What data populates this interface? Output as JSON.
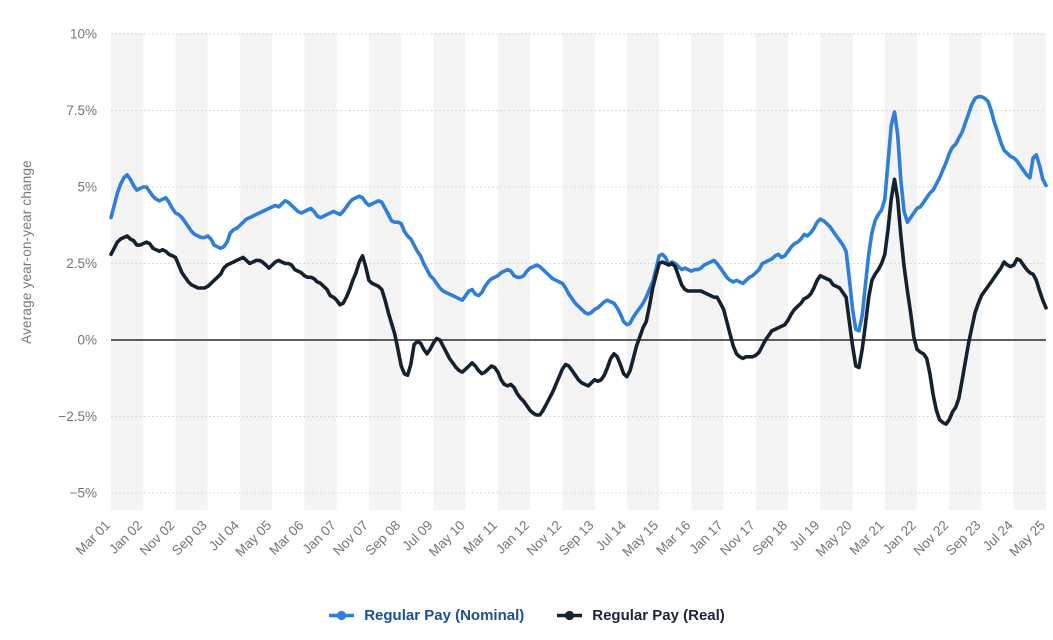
{
  "chart_data": {
    "type": "line",
    "title": "",
    "y_axis": {
      "title": "Average year-on-year change",
      "tick_labels": [
        "10%",
        "7.5%",
        "5%",
        "2.5%",
        "0%",
        "−2.5%",
        "−5%"
      ],
      "tick_values": [
        10,
        7.5,
        5,
        2.5,
        0,
        -2.5,
        -5
      ],
      "range": [
        -5.5,
        10
      ]
    },
    "x_axis": {
      "tick_labels": [
        "Mar 01",
        "Jan 02",
        "Nov 02",
        "Sep 03",
        "Jul 04",
        "May 05",
        "Mar 06",
        "Jan 07",
        "Nov 07",
        "Sep 08",
        "Jul 09",
        "May 10",
        "Mar 11",
        "Jan 12",
        "Nov 12",
        "Sep 13",
        "Jul 14",
        "May 15",
        "Mar 16",
        "Jan 17",
        "Nov 17",
        "Sep 18",
        "Jul 19",
        "May 20",
        "Mar 21",
        "Jan 22",
        "Nov 22",
        "Sep 23",
        "Jul 24",
        "May 25"
      ],
      "months_per_tick": 10,
      "start": "Mar 2001",
      "end": "May 2025"
    },
    "grid": "dotted horizontal",
    "zero_line": true,
    "background_bands": "alternating vertical stripes",
    "legend_position": "bottom",
    "colors": {
      "band": "#f4f4f5",
      "grid": "#d0d0d0",
      "zero_line": "#2b2b2b",
      "tick_text": "#757575"
    },
    "series": [
      {
        "id": "nominal",
        "name": "Regular Pay (Nominal)",
        "color": "#2f7ed8",
        "label_color": "#1d4f91",
        "values": [
          4.0,
          4.4,
          4.8,
          5.1,
          5.3,
          5.4,
          5.25,
          5.05,
          4.9,
          4.95,
          5.0,
          5.0,
          4.85,
          4.7,
          4.6,
          4.55,
          4.6,
          4.65,
          4.5,
          4.3,
          4.15,
          4.1,
          4.0,
          3.85,
          3.7,
          3.55,
          3.45,
          3.4,
          3.35,
          3.35,
          3.4,
          3.3,
          3.1,
          3.05,
          3.0,
          3.05,
          3.2,
          3.5,
          3.6,
          3.65,
          3.75,
          3.85,
          3.95,
          4.0,
          4.05,
          4.1,
          4.15,
          4.2,
          4.25,
          4.3,
          4.35,
          4.4,
          4.35,
          4.45,
          4.55,
          4.5,
          4.4,
          4.3,
          4.2,
          4.15,
          4.2,
          4.25,
          4.3,
          4.2,
          4.05,
          4.0,
          4.05,
          4.1,
          4.15,
          4.2,
          4.15,
          4.1,
          4.2,
          4.35,
          4.5,
          4.6,
          4.65,
          4.7,
          4.65,
          4.5,
          4.4,
          4.45,
          4.5,
          4.55,
          4.5,
          4.3,
          4.1,
          3.9,
          3.85,
          3.85,
          3.8,
          3.55,
          3.4,
          3.3,
          3.1,
          2.9,
          2.75,
          2.5,
          2.3,
          2.1,
          2.0,
          1.85,
          1.7,
          1.6,
          1.55,
          1.5,
          1.45,
          1.4,
          1.35,
          1.3,
          1.45,
          1.6,
          1.65,
          1.5,
          1.45,
          1.55,
          1.75,
          1.9,
          2.0,
          2.05,
          2.1,
          2.2,
          2.25,
          2.3,
          2.25,
          2.1,
          2.05,
          2.05,
          2.1,
          2.25,
          2.35,
          2.4,
          2.45,
          2.4,
          2.3,
          2.2,
          2.1,
          2.0,
          1.95,
          1.9,
          1.85,
          1.7,
          1.5,
          1.35,
          1.2,
          1.1,
          1.0,
          0.9,
          0.85,
          0.9,
          1.0,
          1.05,
          1.15,
          1.25,
          1.3,
          1.25,
          1.2,
          1.05,
          0.85,
          0.6,
          0.5,
          0.55,
          0.75,
          0.9,
          1.05,
          1.2,
          1.4,
          1.65,
          1.9,
          2.3,
          2.75,
          2.8,
          2.7,
          2.45,
          2.55,
          2.5,
          2.4,
          2.3,
          2.35,
          2.3,
          2.25,
          2.3,
          2.3,
          2.35,
          2.45,
          2.5,
          2.55,
          2.6,
          2.5,
          2.35,
          2.2,
          2.05,
          1.95,
          1.9,
          1.95,
          1.9,
          1.85,
          1.95,
          2.05,
          2.1,
          2.2,
          2.3,
          2.5,
          2.55,
          2.6,
          2.65,
          2.75,
          2.8,
          2.7,
          2.75,
          2.9,
          3.05,
          3.15,
          3.2,
          3.3,
          3.45,
          3.4,
          3.5,
          3.65,
          3.85,
          3.95,
          3.9,
          3.8,
          3.7,
          3.55,
          3.4,
          3.25,
          3.1,
          2.9,
          2.0,
          1.0,
          0.35,
          0.3,
          0.8,
          1.8,
          2.8,
          3.5,
          3.9,
          4.1,
          4.25,
          4.6,
          5.8,
          7.0,
          7.45,
          6.7,
          5.2,
          4.2,
          3.85,
          4.0,
          4.15,
          4.3,
          4.35,
          4.5,
          4.65,
          4.8,
          4.9,
          5.1,
          5.3,
          5.55,
          5.8,
          6.1,
          6.3,
          6.4,
          6.6,
          6.8,
          7.1,
          7.4,
          7.7,
          7.9,
          7.95,
          7.95,
          7.9,
          7.8,
          7.5,
          7.1,
          6.8,
          6.45,
          6.2,
          6.1,
          6.0,
          5.95,
          5.85,
          5.7,
          5.55,
          5.4,
          5.3,
          5.95,
          6.05,
          5.7,
          5.25,
          5.05
        ]
      },
      {
        "id": "real",
        "name": "Regular Pay (Real)",
        "color": "#16212e",
        "label_color": "#1c2633",
        "values": [
          2.8,
          3.0,
          3.2,
          3.3,
          3.35,
          3.4,
          3.3,
          3.25,
          3.1,
          3.1,
          3.15,
          3.2,
          3.15,
          3.0,
          2.95,
          2.9,
          2.95,
          2.9,
          2.8,
          2.75,
          2.7,
          2.45,
          2.2,
          2.05,
          1.9,
          1.8,
          1.75,
          1.7,
          1.7,
          1.7,
          1.75,
          1.85,
          1.95,
          2.05,
          2.15,
          2.35,
          2.45,
          2.5,
          2.55,
          2.6,
          2.65,
          2.7,
          2.6,
          2.5,
          2.55,
          2.6,
          2.6,
          2.55,
          2.45,
          2.35,
          2.45,
          2.55,
          2.6,
          2.55,
          2.5,
          2.5,
          2.45,
          2.3,
          2.25,
          2.2,
          2.1,
          2.05,
          2.05,
          2.0,
          1.9,
          1.85,
          1.75,
          1.65,
          1.45,
          1.4,
          1.3,
          1.15,
          1.2,
          1.4,
          1.65,
          1.95,
          2.2,
          2.55,
          2.75,
          2.4,
          1.95,
          1.85,
          1.8,
          1.75,
          1.65,
          1.3,
          0.9,
          0.55,
          0.2,
          -0.3,
          -0.85,
          -1.1,
          -1.15,
          -0.8,
          -0.15,
          -0.05,
          -0.1,
          -0.3,
          -0.45,
          -0.3,
          -0.1,
          0.05,
          0.0,
          -0.2,
          -0.4,
          -0.6,
          -0.75,
          -0.9,
          -1.0,
          -1.05,
          -0.95,
          -0.85,
          -0.75,
          -0.85,
          -1.0,
          -1.1,
          -1.05,
          -0.95,
          -0.85,
          -0.9,
          -1.05,
          -1.3,
          -1.45,
          -1.5,
          -1.45,
          -1.55,
          -1.75,
          -1.9,
          -2.0,
          -2.15,
          -2.3,
          -2.4,
          -2.45,
          -2.45,
          -2.3,
          -2.1,
          -1.9,
          -1.7,
          -1.45,
          -1.2,
          -0.95,
          -0.8,
          -0.85,
          -1.0,
          -1.15,
          -1.3,
          -1.4,
          -1.45,
          -1.5,
          -1.4,
          -1.3,
          -1.35,
          -1.3,
          -1.15,
          -0.9,
          -0.6,
          -0.45,
          -0.55,
          -0.8,
          -1.1,
          -1.2,
          -1.0,
          -0.6,
          -0.2,
          0.1,
          0.4,
          0.6,
          1.1,
          1.7,
          2.1,
          2.5,
          2.55,
          2.5,
          2.45,
          2.5,
          2.4,
          2.1,
          1.8,
          1.65,
          1.6,
          1.6,
          1.6,
          1.6,
          1.6,
          1.55,
          1.5,
          1.45,
          1.4,
          1.4,
          1.2,
          1.0,
          0.6,
          0.2,
          -0.2,
          -0.45,
          -0.55,
          -0.6,
          -0.55,
          -0.55,
          -0.55,
          -0.5,
          -0.4,
          -0.2,
          0.0,
          0.15,
          0.3,
          0.35,
          0.4,
          0.45,
          0.5,
          0.65,
          0.85,
          1.0,
          1.1,
          1.2,
          1.35,
          1.4,
          1.5,
          1.7,
          1.95,
          2.1,
          2.05,
          2.0,
          1.95,
          1.8,
          1.75,
          1.7,
          1.55,
          1.4,
          0.6,
          -0.2,
          -0.85,
          -0.9,
          -0.3,
          0.5,
          1.4,
          1.95,
          2.15,
          2.3,
          2.5,
          2.8,
          3.6,
          4.6,
          5.25,
          4.6,
          3.4,
          2.4,
          1.6,
          0.9,
          0.1,
          -0.3,
          -0.4,
          -0.45,
          -0.6,
          -1.1,
          -1.8,
          -2.3,
          -2.6,
          -2.7,
          -2.75,
          -2.6,
          -2.35,
          -2.2,
          -1.9,
          -1.3,
          -0.7,
          -0.1,
          0.4,
          0.9,
          1.2,
          1.45,
          1.6,
          1.75,
          1.9,
          2.05,
          2.2,
          2.35,
          2.55,
          2.45,
          2.4,
          2.45,
          2.65,
          2.6,
          2.45,
          2.3,
          2.2,
          2.15,
          1.95,
          1.6,
          1.3,
          1.05
        ]
      }
    ]
  }
}
